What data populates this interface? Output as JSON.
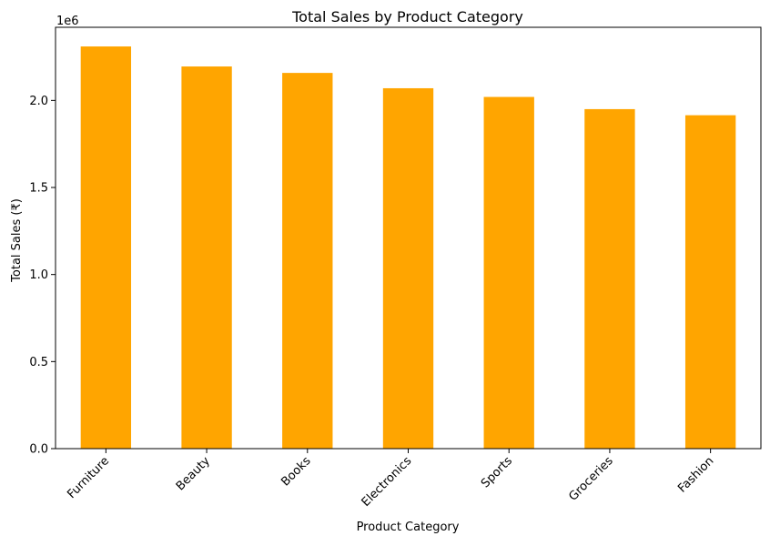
{
  "chart_data": {
    "type": "bar",
    "title": "Total Sales by Product Category",
    "xlabel": "Product Category",
    "ylabel": "Total Sales (₹)",
    "y_offset_label": "1e6",
    "categories": [
      "Furniture",
      "Beauty",
      "Books",
      "Electronics",
      "Sports",
      "Groceries",
      "Fashion"
    ],
    "values": [
      2310000,
      2195000,
      2158000,
      2070000,
      2020000,
      1950000,
      1915000
    ],
    "ylim": [
      0,
      2420000
    ],
    "y_ticks": [
      0,
      500000,
      1000000,
      1500000,
      2000000
    ],
    "y_tick_labels": [
      "0.0",
      "0.5",
      "1.0",
      "1.5",
      "2.0"
    ],
    "bar_color": "#ffa500",
    "grid": false,
    "legend": "none"
  }
}
